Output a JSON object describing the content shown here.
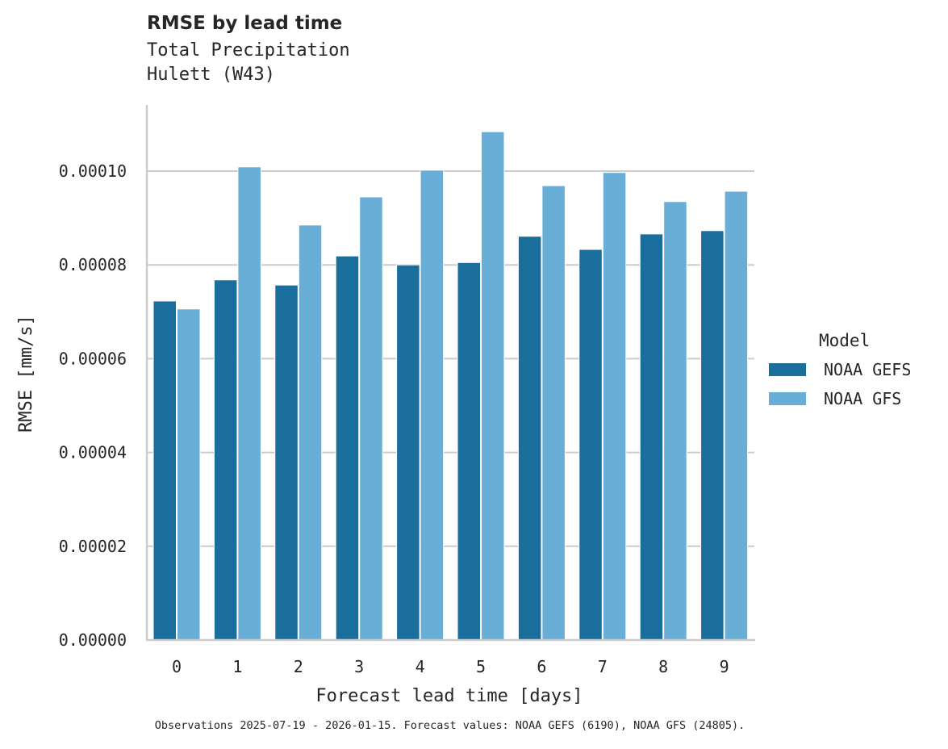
{
  "title": "RMSE by lead time",
  "subtitle_lines": [
    "Total Precipitation",
    "Hulett (W43)"
  ],
  "footnote": "Observations 2025-07-19 - 2026-01-15. Forecast values: NOAA GEFS (6190), NOAA GFS (24805).",
  "legend": {
    "title": "Model",
    "items": [
      {
        "label": "NOAA GEFS",
        "color": "#1a6e9c"
      },
      {
        "label": "NOAA GFS",
        "color": "#68aed6"
      }
    ]
  },
  "chart_data": {
    "type": "bar",
    "title": "RMSE by lead time",
    "subtitle": "Total Precipitation\nHulett (W43)",
    "xlabel": "Forecast lead time [days]",
    "ylabel": "RMSE [mm/s]",
    "categories": [
      "0",
      "1",
      "2",
      "3",
      "4",
      "5",
      "6",
      "7",
      "8",
      "9"
    ],
    "series": [
      {
        "name": "NOAA GEFS",
        "color": "#1a6e9c",
        "values": [
          7.23e-05,
          7.68e-05,
          7.57e-05,
          8.19e-05,
          8e-05,
          8.05e-05,
          8.61e-05,
          8.33e-05,
          8.66e-05,
          8.73e-05
        ]
      },
      {
        "name": "NOAA GFS",
        "color": "#68aed6",
        "values": [
          7.06e-05,
          0.0001009,
          8.85e-05,
          9.45e-05,
          0.0001002,
          0.0001084,
          9.69e-05,
          9.97e-05,
          9.35e-05,
          9.57e-05
        ]
      }
    ],
    "yticks": [
      "0.00000",
      "0.00002",
      "0.00004",
      "0.00006",
      "0.00008",
      "0.00010"
    ],
    "ytick_values": [
      0,
      2e-05,
      4e-05,
      6e-05,
      8e-05,
      0.0001
    ],
    "ylim": [
      0,
      0.000114
    ],
    "grid": "horizontal",
    "legend_position": "right"
  }
}
